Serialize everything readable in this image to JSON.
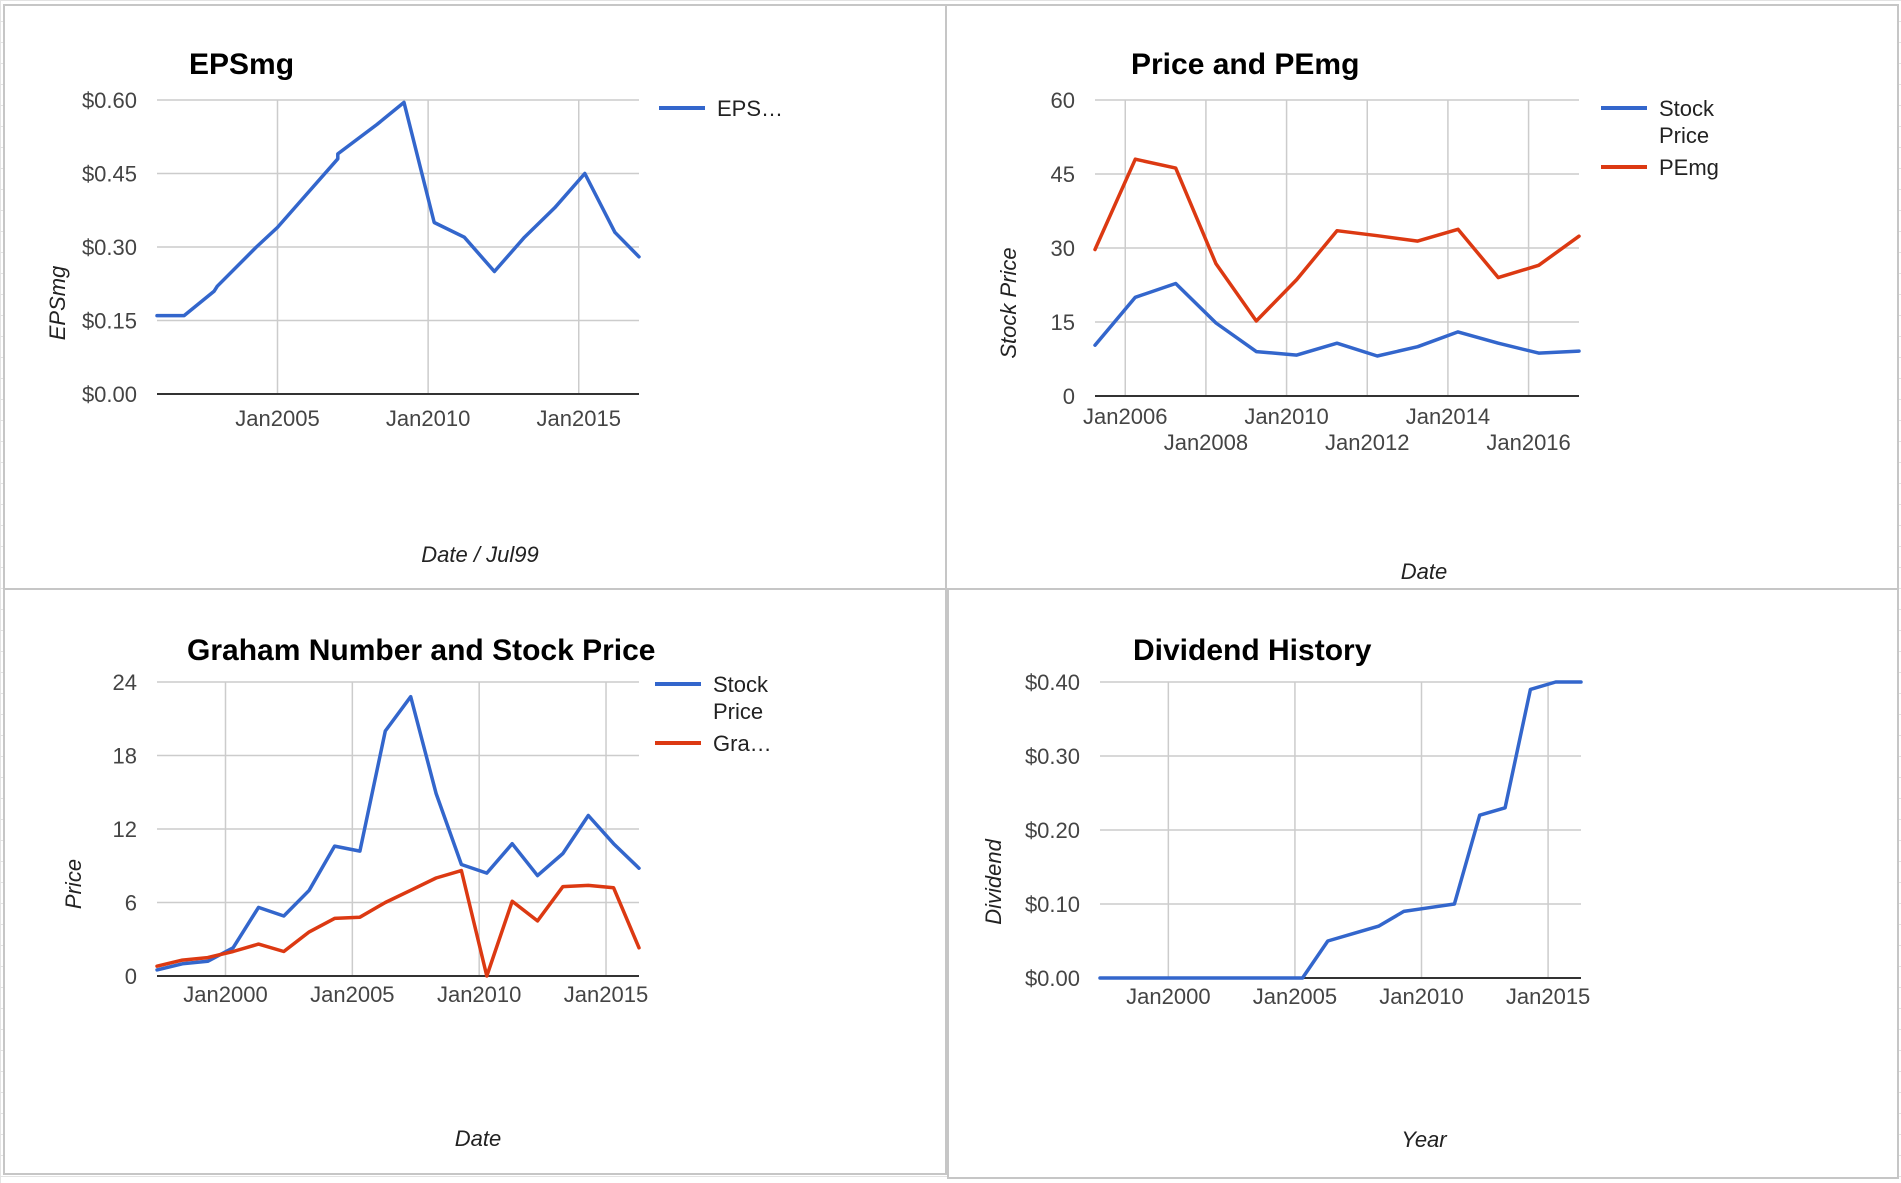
{
  "colors": {
    "blue": "#3366cc",
    "red": "#dc3912",
    "grid": "#cccccc",
    "baseline": "#333333"
  },
  "chart_data": [
    {
      "id": "eps",
      "type": "line",
      "title": "EPSmg",
      "xlabel": "Date / Jul99",
      "ylabel": "EPSmg",
      "y_format": "currency",
      "xlim": [
        2001.0,
        2017.0
      ],
      "ylim": [
        0,
        0.6
      ],
      "yticks": [
        {
          "value": 0,
          "label": "$0.00"
        },
        {
          "value": 0.15,
          "label": "$0.15"
        },
        {
          "value": 0.3,
          "label": "$0.30"
        },
        {
          "value": 0.45,
          "label": "$0.45"
        },
        {
          "value": 0.6,
          "label": "$0.60"
        }
      ],
      "xticks": [
        {
          "value": 2005.0,
          "label": "Jan2005"
        },
        {
          "value": 2010.0,
          "label": "Jan2010"
        },
        {
          "value": 2015.0,
          "label": "Jan2015"
        }
      ],
      "legend": {
        "position": "right",
        "entries": [
          {
            "label": "EPS…",
            "color": "#3366cc"
          }
        ]
      },
      "series": [
        {
          "name": "EPS…",
          "color": "#3366cc",
          "x": [
            2001.0,
            2001.9,
            2002.9,
            2003.0,
            2004.3,
            2005.0,
            2006.0,
            2007.0,
            2007.0,
            2008.3,
            2009.2,
            2010.2,
            2011.2,
            2012.2,
            2013.2,
            2014.2,
            2015.2,
            2016.2,
            2017.0
          ],
          "y": [
            0.16,
            0.16,
            0.21,
            0.22,
            0.3,
            0.34,
            0.41,
            0.48,
            0.49,
            0.55,
            0.595,
            0.35,
            0.32,
            0.25,
            0.32,
            0.38,
            0.45,
            0.33,
            0.28
          ]
        }
      ]
    },
    {
      "id": "price_pe",
      "type": "line",
      "title": "Price and PEmg",
      "xlabel": "Date",
      "ylabel": "Stock Price",
      "xlim": [
        2005.0,
        2017.0
      ],
      "ylim": [
        0,
        60
      ],
      "yticks": [
        {
          "value": 0,
          "label": "0"
        },
        {
          "value": 15,
          "label": "15"
        },
        {
          "value": 30,
          "label": "30"
        },
        {
          "value": 45,
          "label": "45"
        },
        {
          "value": 60,
          "label": "60"
        }
      ],
      "xticks": [
        {
          "value": 2005.75,
          "label": "Jan2006",
          "row": 0
        },
        {
          "value": 2007.75,
          "label": "Jan2008",
          "row": 1
        },
        {
          "value": 2009.75,
          "label": "Jan2010",
          "row": 0
        },
        {
          "value": 2011.75,
          "label": "Jan2012",
          "row": 1
        },
        {
          "value": 2013.75,
          "label": "Jan2014",
          "row": 0
        },
        {
          "value": 2015.75,
          "label": "Jan2016",
          "row": 1
        }
      ],
      "legend": {
        "position": "right",
        "entries": [
          {
            "label": "Stock Price",
            "lines": [
              "Stock",
              "Price"
            ],
            "color": "#3366cc"
          },
          {
            "label": "PEmg",
            "lines": [
              "PEmg"
            ],
            "color": "#dc3912"
          }
        ]
      },
      "series": [
        {
          "name": "Stock Price",
          "color": "#3366cc",
          "x": [
            2005.0,
            2006.0,
            2007.0,
            2008.0,
            2009.0,
            2010.0,
            2011.0,
            2012.0,
            2013.0,
            2014.0,
            2015.0,
            2016.0,
            2017.0
          ],
          "y": [
            10.3,
            20.0,
            22.8,
            14.8,
            9.0,
            8.3,
            10.7,
            8.1,
            10.0,
            13.0,
            10.7,
            8.7,
            9.1
          ]
        },
        {
          "name": "PEmg",
          "color": "#dc3912",
          "x": [
            2005.0,
            2006.0,
            2007.0,
            2008.0,
            2009.0,
            2010.0,
            2011.0,
            2012.0,
            2013.0,
            2014.0,
            2015.0,
            2016.0,
            2017.0
          ],
          "y": [
            29.7,
            48.0,
            46.2,
            26.8,
            15.2,
            23.6,
            33.5,
            32.5,
            31.4,
            33.8,
            24.0,
            26.5,
            32.4
          ]
        }
      ]
    },
    {
      "id": "graham",
      "type": "line",
      "title": "Graham Number and Stock Price",
      "xlabel": "Date",
      "ylabel": "Price",
      "xlim": [
        1997.3,
        2016.3
      ],
      "ylim": [
        0,
        24
      ],
      "yticks": [
        {
          "value": 0,
          "label": "0"
        },
        {
          "value": 6,
          "label": "6"
        },
        {
          "value": 12,
          "label": "12"
        },
        {
          "value": 18,
          "label": "18"
        },
        {
          "value": 24,
          "label": "24"
        }
      ],
      "xticks": [
        {
          "value": 2000.0,
          "label": "Jan2000"
        },
        {
          "value": 2005.0,
          "label": "Jan2005"
        },
        {
          "value": 2010.0,
          "label": "Jan2010"
        },
        {
          "value": 2015.0,
          "label": "Jan2015"
        }
      ],
      "legend": {
        "position": "right",
        "entries": [
          {
            "label": "Stock Price",
            "lines": [
              "Stock",
              "Price"
            ],
            "color": "#3366cc"
          },
          {
            "label": "Gra…",
            "lines": [
              "Gra…"
            ],
            "color": "#dc3912"
          }
        ]
      },
      "series": [
        {
          "name": "Stock Price",
          "color": "#3366cc",
          "x": [
            1997.3,
            1998.3,
            1999.3,
            2000.3,
            2001.3,
            2002.3,
            2003.3,
            2004.3,
            2005.3,
            2006.3,
            2007.3,
            2008.3,
            2009.3,
            2010.3,
            2011.3,
            2012.3,
            2013.3,
            2014.3,
            2015.3,
            2016.3
          ],
          "y": [
            0.5,
            1.0,
            1.2,
            2.3,
            5.6,
            4.9,
            7.0,
            10.6,
            10.2,
            20.0,
            22.8,
            14.9,
            9.1,
            8.4,
            10.8,
            8.2,
            10.0,
            13.1,
            10.8,
            8.8
          ]
        },
        {
          "name": "Gra…",
          "color": "#dc3912",
          "x": [
            1997.3,
            1998.3,
            1999.3,
            2000.3,
            2001.3,
            2002.3,
            2003.3,
            2004.3,
            2005.3,
            2006.3,
            2007.3,
            2008.3,
            2009.3,
            2010.3,
            2011.3,
            2012.3,
            2013.3,
            2014.3,
            2015.3,
            2016.3
          ],
          "y": [
            0.8,
            1.3,
            1.5,
            2.0,
            2.6,
            2.0,
            3.6,
            4.7,
            4.8,
            6.0,
            7.0,
            8.0,
            8.6,
            0.0,
            6.1,
            4.5,
            7.3,
            7.4,
            7.2,
            2.3
          ]
        }
      ]
    },
    {
      "id": "dividend",
      "type": "line",
      "title": "Dividend History",
      "xlabel": "Year",
      "ylabel": "Dividend",
      "y_format": "currency",
      "xlim": [
        1997.3,
        2016.3
      ],
      "ylim": [
        0,
        0.4
      ],
      "yticks": [
        {
          "value": 0,
          "label": "$0.00"
        },
        {
          "value": 0.1,
          "label": "$0.10"
        },
        {
          "value": 0.2,
          "label": "$0.20"
        },
        {
          "value": 0.3,
          "label": "$0.30"
        },
        {
          "value": 0.4,
          "label": "$0.40"
        }
      ],
      "xticks": [
        {
          "value": 2000.0,
          "label": "Jan2000"
        },
        {
          "value": 2005.0,
          "label": "Jan2005"
        },
        {
          "value": 2010.0,
          "label": "Jan2010"
        },
        {
          "value": 2015.0,
          "label": "Jan2015"
        }
      ],
      "legend": {
        "position": "none",
        "entries": []
      },
      "series": [
        {
          "name": "",
          "color": "#3366cc",
          "x": [
            1997.3,
            1998.3,
            1999.3,
            2000.3,
            2001.3,
            2002.3,
            2003.3,
            2004.3,
            2005.3,
            2006.3,
            2007.3,
            2008.3,
            2009.3,
            2010.3,
            2011.3,
            2012.3,
            2013.3,
            2014.3,
            2015.3,
            2016.3
          ],
          "y": [
            0,
            0,
            0,
            0,
            0,
            0,
            0,
            0,
            0,
            0.05,
            0.06,
            0.07,
            0.09,
            0.095,
            0.1,
            0.22,
            0.23,
            0.39,
            0.4,
            0.4
          ]
        }
      ]
    }
  ]
}
